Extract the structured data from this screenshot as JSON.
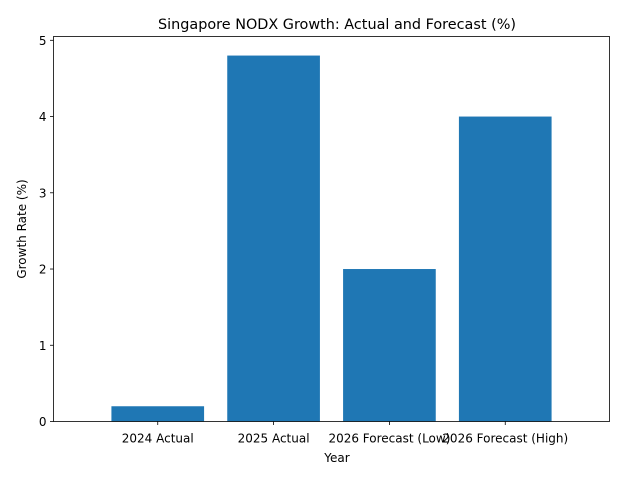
{
  "chart_data": {
    "type": "bar",
    "title": "Singapore NODX Growth: Actual and Forecast (%)",
    "xlabel": "Year",
    "ylabel": "Growth Rate (%)",
    "categories": [
      "2024 Actual",
      "2025 Actual",
      "2026 Forecast (Low)",
      "2026 Forecast (High)"
    ],
    "values": [
      0.2,
      4.8,
      2.0,
      4.0
    ],
    "ylim": [
      0,
      5.05
    ],
    "yticks": [
      0,
      1,
      2,
      3,
      4,
      5
    ],
    "ytick_labels": [
      "0",
      "1",
      "2",
      "3",
      "4",
      "5"
    ],
    "bar_color": "#1f77b4",
    "grid": false,
    "legend": "none"
  }
}
